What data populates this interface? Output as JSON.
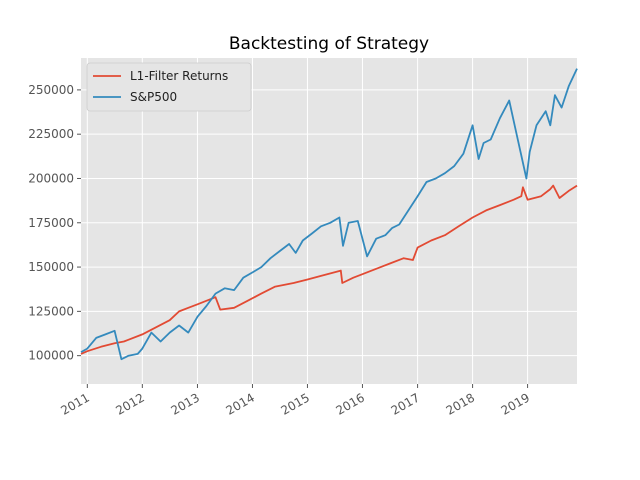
{
  "chart_data": {
    "type": "line",
    "title": "Backtesting of Strategy",
    "xlabel": "",
    "ylabel": "",
    "xlim": [
      "2010-11-20",
      "2019-11-25"
    ],
    "ylim": [
      84000,
      268000
    ],
    "grid": true,
    "legend_position": "top-left",
    "x_ticks": [
      "2011",
      "2012",
      "2013",
      "2014",
      "2015",
      "2016",
      "2017",
      "2018",
      "2019"
    ],
    "y_ticks": [
      100000,
      125000,
      150000,
      175000,
      200000,
      225000,
      250000
    ],
    "y_tick_labels": [
      "100000",
      "125000",
      "150000",
      "175000",
      "200000",
      "225000",
      "250000"
    ],
    "series": [
      {
        "name": "L1-Filter Returns",
        "color": "#e24a33",
        "x": [
          "2010-11-20",
          "2011-01-01",
          "2011-04-01",
          "2011-07-01",
          "2011-09-01",
          "2012-01-01",
          "2012-04-01",
          "2012-07-01",
          "2012-09-01",
          "2012-11-01",
          "2013-01-01",
          "2013-05-01",
          "2013-06-01",
          "2013-09-01",
          "2013-12-01",
          "2014-03-01",
          "2014-06-01",
          "2014-10-01",
          "2015-01-01",
          "2015-04-01",
          "2015-08-10",
          "2015-08-20",
          "2015-11-01",
          "2016-01-01",
          "2016-04-01",
          "2016-07-01",
          "2016-10-01",
          "2016-12-01",
          "2017-01-01",
          "2017-04-01",
          "2017-07-01",
          "2017-10-01",
          "2018-01-01",
          "2018-04-01",
          "2018-07-01",
          "2018-10-01",
          "2018-11-20",
          "2018-12-01",
          "2019-01-01",
          "2019-04-01",
          "2019-06-01",
          "2019-06-20",
          "2019-08-01",
          "2019-10-01",
          "2019-11-25"
        ],
        "y": [
          101000,
          102500,
          105000,
          107000,
          108000,
          112000,
          116000,
          120000,
          125000,
          127000,
          129000,
          133000,
          126000,
          127000,
          131000,
          135000,
          139000,
          141000,
          143000,
          145000,
          148000,
          141000,
          144000,
          146000,
          149000,
          152000,
          155000,
          154000,
          161000,
          165000,
          168000,
          173000,
          178000,
          182000,
          185000,
          188000,
          190000,
          195000,
          188000,
          190000,
          194000,
          196000,
          189000,
          193000,
          196000
        ]
      },
      {
        "name": "S&P500",
        "color": "#348abd",
        "x": [
          "2010-11-20",
          "2011-01-01",
          "2011-03-01",
          "2011-05-01",
          "2011-07-01",
          "2011-08-15",
          "2011-10-01",
          "2011-12-01",
          "2012-01-01",
          "2012-03-01",
          "2012-05-01",
          "2012-07-01",
          "2012-09-01",
          "2012-11-01",
          "2013-01-01",
          "2013-03-01",
          "2013-05-01",
          "2013-07-01",
          "2013-09-01",
          "2013-11-01",
          "2014-01-01",
          "2014-03-01",
          "2014-05-01",
          "2014-07-01",
          "2014-09-01",
          "2014-10-15",
          "2014-12-01",
          "2015-02-01",
          "2015-04-01",
          "2015-06-01",
          "2015-08-01",
          "2015-08-25",
          "2015-10-01",
          "2015-12-01",
          "2016-02-01",
          "2016-04-01",
          "2016-06-01",
          "2016-07-15",
          "2016-09-01",
          "2016-11-01",
          "2017-01-01",
          "2017-03-01",
          "2017-05-01",
          "2017-07-01",
          "2017-09-01",
          "2017-11-01",
          "2018-01-01",
          "2018-02-10",
          "2018-03-15",
          "2018-05-01",
          "2018-07-01",
          "2018-09-01",
          "2018-10-20",
          "2018-12-24",
          "2019-01-15",
          "2019-03-01",
          "2019-05-01",
          "2019-06-01",
          "2019-07-01",
          "2019-08-15",
          "2019-10-01",
          "2019-11-25"
        ],
        "y": [
          102000,
          104000,
          110000,
          112000,
          114000,
          98000,
          100000,
          101000,
          104000,
          113000,
          108000,
          113000,
          117000,
          113000,
          122000,
          128000,
          135000,
          138000,
          137000,
          144000,
          147000,
          150000,
          155000,
          159000,
          163000,
          158000,
          165000,
          169000,
          173000,
          175000,
          178000,
          162000,
          175000,
          176000,
          156000,
          166000,
          168000,
          172000,
          174000,
          182000,
          190000,
          198000,
          200000,
          203000,
          207000,
          214000,
          230000,
          211000,
          220000,
          222000,
          234000,
          244000,
          225000,
          200000,
          215000,
          230000,
          238000,
          230000,
          247000,
          240000,
          252000,
          262000
        ]
      }
    ]
  }
}
